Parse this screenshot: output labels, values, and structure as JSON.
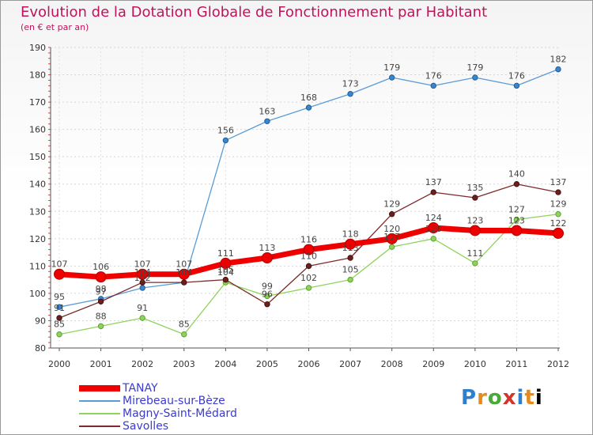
{
  "chart_data": {
    "type": "line",
    "title": "Evolution de la Dotation Globale de Fonctionnement par Habitant",
    "subtitle": "(en € et par an)",
    "xlabel": "",
    "ylabel": "",
    "categories": [
      "2000",
      "2001",
      "2002",
      "2003",
      "2004",
      "2005",
      "2006",
      "2007",
      "2008",
      "2009",
      "2010",
      "2011",
      "2012"
    ],
    "ylim": [
      80,
      190
    ],
    "yticks": [
      80,
      90,
      100,
      110,
      120,
      130,
      140,
      150,
      160,
      170,
      180,
      190
    ],
    "grid": true,
    "legend_position": "bottom-left",
    "series": [
      {
        "name": "Mirebeau-sur-Bèze",
        "color": "#5b9bd5",
        "values": [
          95,
          98,
          102,
          104,
          156,
          163,
          168,
          173,
          179,
          176,
          179,
          176,
          182
        ]
      },
      {
        "name": "Magny-Saint-Médard",
        "color": "#8fd35c",
        "values": [
          85,
          88,
          91,
          85,
          104,
          99,
          102,
          105,
          117,
          120,
          111,
          127,
          129
        ]
      },
      {
        "name": "Savolles",
        "color": "#7b2b2b",
        "values": [
          91,
          97,
          104,
          104,
          105,
          96,
          110,
          113,
          129,
          137,
          135,
          140,
          137
        ]
      },
      {
        "name": "TANAY",
        "color": "#ee0000",
        "values": [
          107,
          106,
          107,
          107,
          111,
          113,
          116,
          118,
          120,
          124,
          123,
          123,
          122
        ]
      }
    ],
    "legend_order": [
      "TANAY",
      "Mirebeau-sur-Bèze",
      "Magny-Saint-Médard",
      "Savolles"
    ]
  },
  "logo": {
    "letters": [
      "P",
      "r",
      "o",
      "x",
      "i",
      "t",
      "i"
    ]
  }
}
